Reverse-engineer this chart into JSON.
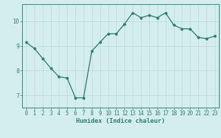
{
  "x": [
    0,
    1,
    2,
    3,
    4,
    5,
    6,
    7,
    8,
    9,
    10,
    11,
    12,
    13,
    14,
    15,
    16,
    17,
    18,
    19,
    20,
    21,
    22,
    23
  ],
  "y": [
    9.15,
    8.9,
    8.5,
    8.1,
    7.75,
    7.7,
    6.9,
    6.9,
    8.8,
    9.15,
    9.5,
    9.5,
    9.9,
    10.35,
    10.15,
    10.25,
    10.15,
    10.35,
    9.85,
    9.7,
    9.7,
    9.35,
    9.3,
    9.4
  ],
  "xlabel": "Humidex (Indice chaleur)",
  "ylim": [
    6.5,
    10.7
  ],
  "xlim": [
    -0.5,
    23.5
  ],
  "yticks": [
    7,
    8,
    9,
    10
  ],
  "xticks": [
    0,
    1,
    2,
    3,
    4,
    5,
    6,
    7,
    8,
    9,
    10,
    11,
    12,
    13,
    14,
    15,
    16,
    17,
    18,
    19,
    20,
    21,
    22,
    23
  ],
  "line_color": "#2e7d6e",
  "marker_color": "#2e7d6e",
  "bg_color": "#d4eeee",
  "grid_color": "#b8d8d8",
  "axis_color": "#2e7d6e",
  "tick_color": "#2e7d6e",
  "label_color": "#2e7d6e",
  "xlabel_fontsize": 6.5,
  "tick_fontsize": 5.5,
  "linewidth": 1.0,
  "markersize": 2.0
}
